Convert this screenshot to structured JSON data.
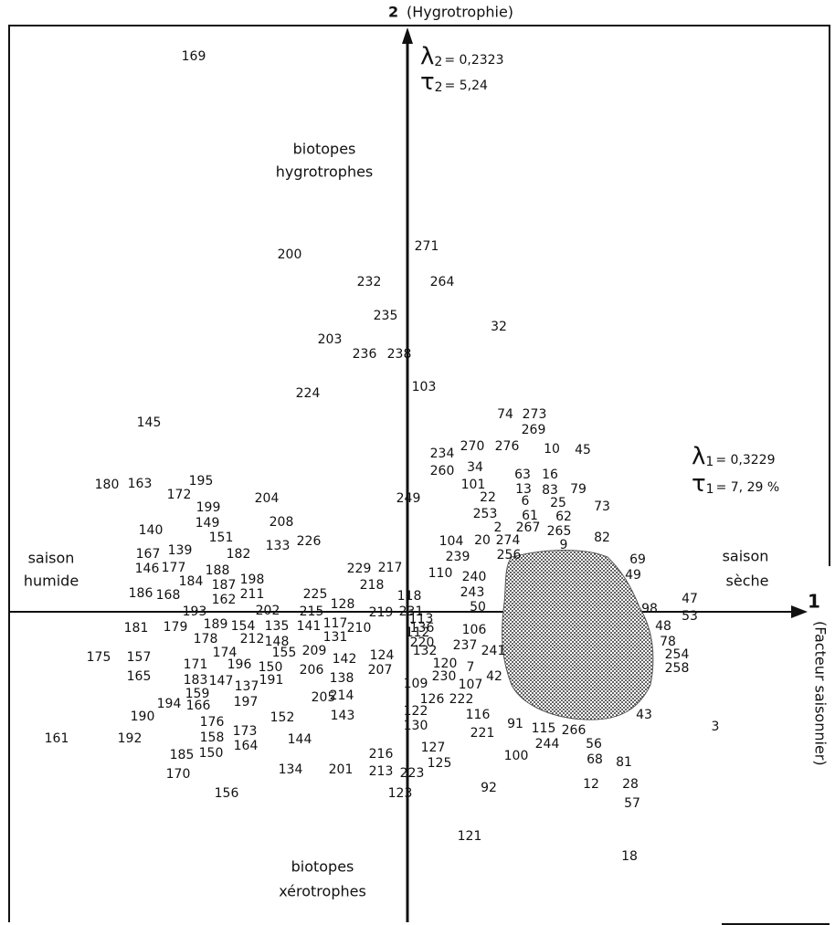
{
  "axis_2": {
    "number": "2",
    "name": "(Hygrotrophie)",
    "lambda_symbol": "λ",
    "lambda_index": "2",
    "lambda_value": "= 0,2323",
    "tau_symbol": "τ",
    "tau_index": "2",
    "tau_value": "= 5,24"
  },
  "axis_1": {
    "number": "1",
    "name": "(Facteur saisonnier)",
    "lambda_symbol": "λ",
    "lambda_index": "1",
    "lambda_value": "= 0,3229",
    "tau_symbol": "τ",
    "tau_index": "1",
    "tau_value": "= 7, 29 %"
  },
  "regions": {
    "top": [
      "biotopes",
      "hygrotrophes"
    ],
    "bottom": [
      "biotopes",
      "xérotrophes"
    ],
    "left": [
      "saison",
      "humide"
    ],
    "right": [
      "saison",
      "sèche"
    ]
  },
  "points": [
    "169",
    "271",
    "200",
    "232",
    "264",
    "235",
    "32",
    "203",
    "236",
    "238",
    "103",
    "224",
    "145",
    "74",
    "273",
    "269",
    "234",
    "270",
    "276",
    "10",
    "45",
    "260",
    "34",
    "63",
    "16",
    "101",
    "13",
    "83",
    "79",
    "180",
    "163",
    "195",
    "172",
    "204",
    "249",
    "22",
    "6",
    "25",
    "73",
    "199",
    "253",
    "61",
    "62",
    "149",
    "208",
    "140",
    "2",
    "267",
    "265",
    "151",
    "82",
    "104",
    "20",
    "274",
    "9",
    "133",
    "226",
    "167",
    "139",
    "182",
    "239",
    "256",
    "69",
    "146",
    "177",
    "188",
    "229",
    "217",
    "110",
    "240",
    "49",
    "184",
    "187",
    "198",
    "218",
    "243",
    "186",
    "168",
    "162",
    "211",
    "118",
    "225",
    "128",
    "47",
    "50",
    "193",
    "202",
    "215",
    "219",
    "231",
    "98",
    "113",
    "53",
    "181",
    "179",
    "189",
    "154",
    "135",
    "141",
    "117",
    "210",
    "136",
    "106",
    "48",
    "178",
    "212",
    "148",
    "131",
    "220",
    "112",
    "237",
    "241",
    "78",
    "175",
    "157",
    "171",
    "174",
    "196",
    "150",
    "155",
    "209",
    "124",
    "132",
    "120",
    "7",
    "254",
    "142",
    "258",
    "165",
    "183",
    "147",
    "137",
    "191",
    "206",
    "138",
    "207",
    "230",
    "107",
    "42",
    "109",
    "159",
    "194",
    "166",
    "197",
    "205",
    "214",
    "126",
    "222",
    "190",
    "176",
    "152",
    "143",
    "122",
    "116",
    "43",
    "3",
    "130",
    "91",
    "115",
    "266",
    "221",
    "56",
    "173",
    "161",
    "192",
    "158",
    "164",
    "144",
    "244",
    "68",
    "81",
    "100",
    "127",
    "185",
    "150",
    "216",
    "125",
    "170",
    "134",
    "201",
    "213",
    "223",
    "92",
    "12",
    "28",
    "123",
    "57",
    "156",
    "121",
    "18"
  ]
}
